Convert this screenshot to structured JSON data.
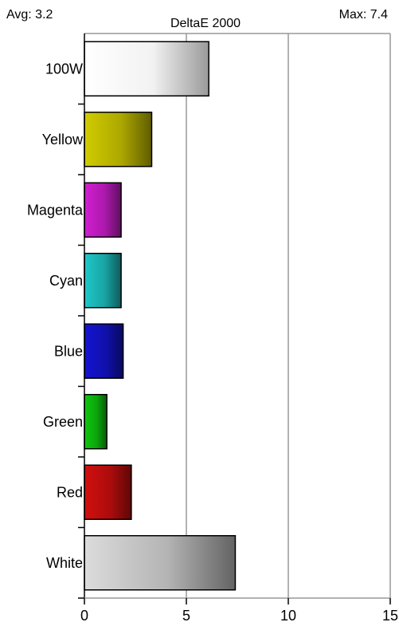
{
  "header": {
    "avg_label": "Avg: 3.2",
    "max_label": "Max: 7.4"
  },
  "chart_data": {
    "type": "bar",
    "orientation": "horizontal",
    "title": "DeltaE 2000",
    "xlabel": "",
    "ylabel": "",
    "categories": [
      "100W",
      "Yellow",
      "Magenta",
      "Cyan",
      "Blue",
      "Green",
      "Red",
      "White"
    ],
    "values": [
      6.1,
      3.3,
      1.8,
      1.8,
      1.9,
      1.1,
      2.3,
      7.4
    ],
    "xlim": [
      0,
      15
    ],
    "xticks": [
      0,
      5,
      10,
      15
    ],
    "xtick_labels": [
      "0",
      "5",
      "10",
      "15"
    ],
    "grid": true,
    "legend": "none",
    "bar_colors": [
      "#ffffff",
      "#d2cc00",
      "#d21ed2",
      "#1ec8c8",
      "#1414d2",
      "#0fc80f",
      "#d20f0f",
      "#dcdcdc"
    ]
  }
}
